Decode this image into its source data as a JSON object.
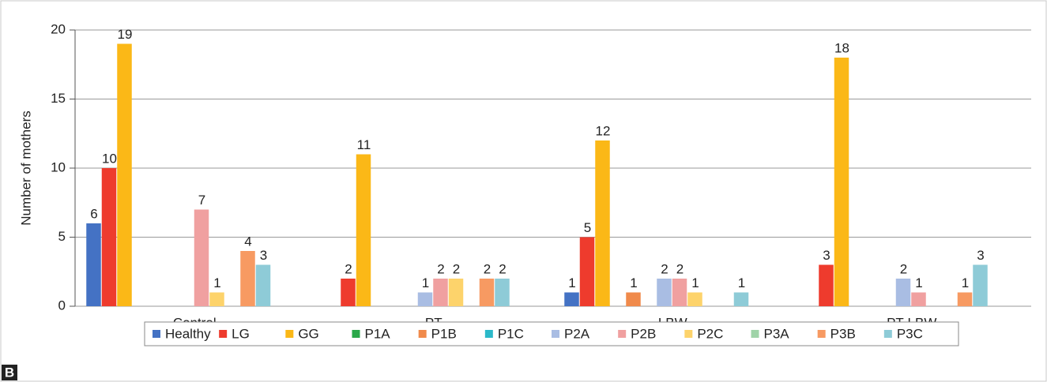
{
  "chart_data": {
    "type": "bar",
    "ylabel": "Number of mothers",
    "panel_label": "B",
    "categories": [
      "Control",
      "PT",
      "LBW",
      "PT-LBW"
    ],
    "series": [
      {
        "name": "Healthy",
        "color": "#4472c4",
        "values": [
          6,
          0,
          1,
          0
        ]
      },
      {
        "name": "LG",
        "color": "#ee3b2d",
        "values": [
          10,
          2,
          5,
          3
        ]
      },
      {
        "name": "GG",
        "color": "#fbb817",
        "values": [
          19,
          11,
          12,
          18
        ]
      },
      {
        "name": "P1A",
        "color": "#2aa84a",
        "values": [
          0,
          0,
          0,
          0
        ]
      },
      {
        "name": "P1B",
        "color": "#f08a4b",
        "values": [
          0,
          0,
          1,
          0
        ]
      },
      {
        "name": "P1C",
        "color": "#2bb9c9",
        "values": [
          0,
          0,
          0,
          0
        ]
      },
      {
        "name": "P2A",
        "color": "#a9bde3",
        "values": [
          0,
          1,
          2,
          2
        ]
      },
      {
        "name": "P2B",
        "color": "#f0a0a0",
        "values": [
          7,
          2,
          2,
          1
        ]
      },
      {
        "name": "P2C",
        "color": "#fdd36b",
        "values": [
          1,
          2,
          1,
          0
        ]
      },
      {
        "name": "P3A",
        "color": "#9fd3a8",
        "values": [
          0,
          0,
          0,
          0
        ]
      },
      {
        "name": "P3B",
        "color": "#f79a62",
        "values": [
          4,
          2,
          0,
          1
        ]
      },
      {
        "name": "P3C",
        "color": "#8ecbd7",
        "values": [
          3,
          2,
          1,
          3
        ]
      }
    ],
    "ylim": [
      0,
      20
    ],
    "yticks": [
      0,
      5,
      10,
      15,
      20
    ],
    "grid": true,
    "legend": "bottom"
  }
}
